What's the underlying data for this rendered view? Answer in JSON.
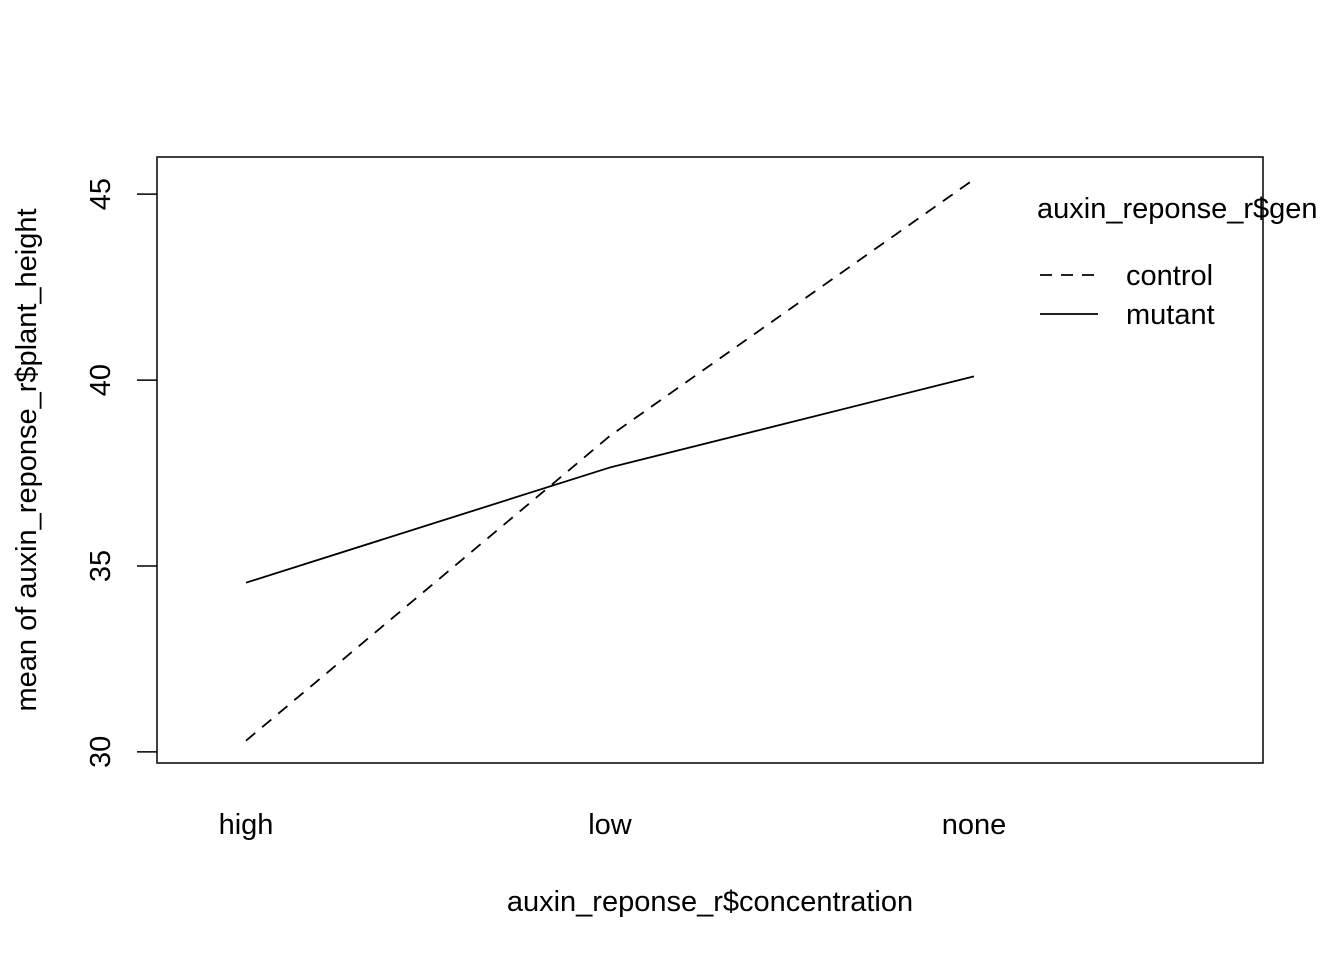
{
  "chart_data": {
    "type": "line",
    "title": "",
    "xlabel": "auxin_reponse_r$concentration",
    "ylabel": "mean of  auxin_reponse_r$plant_height",
    "categories": [
      "high",
      "low",
      "none"
    ],
    "ylim": [
      29.7,
      46.0
    ],
    "yticks": [
      30,
      35,
      40,
      45
    ],
    "grid": false,
    "legend": {
      "title": "auxin_reponse_r$gen",
      "placement": "top-right, clipped at right edge"
    },
    "series": [
      {
        "name": "control",
        "line_style": "dashed",
        "values": [
          30.3,
          38.5,
          45.4
        ]
      },
      {
        "name": "mutant",
        "line_style": "solid",
        "values": [
          34.55,
          37.65,
          40.1
        ]
      }
    ],
    "line_color": "#000000"
  }
}
